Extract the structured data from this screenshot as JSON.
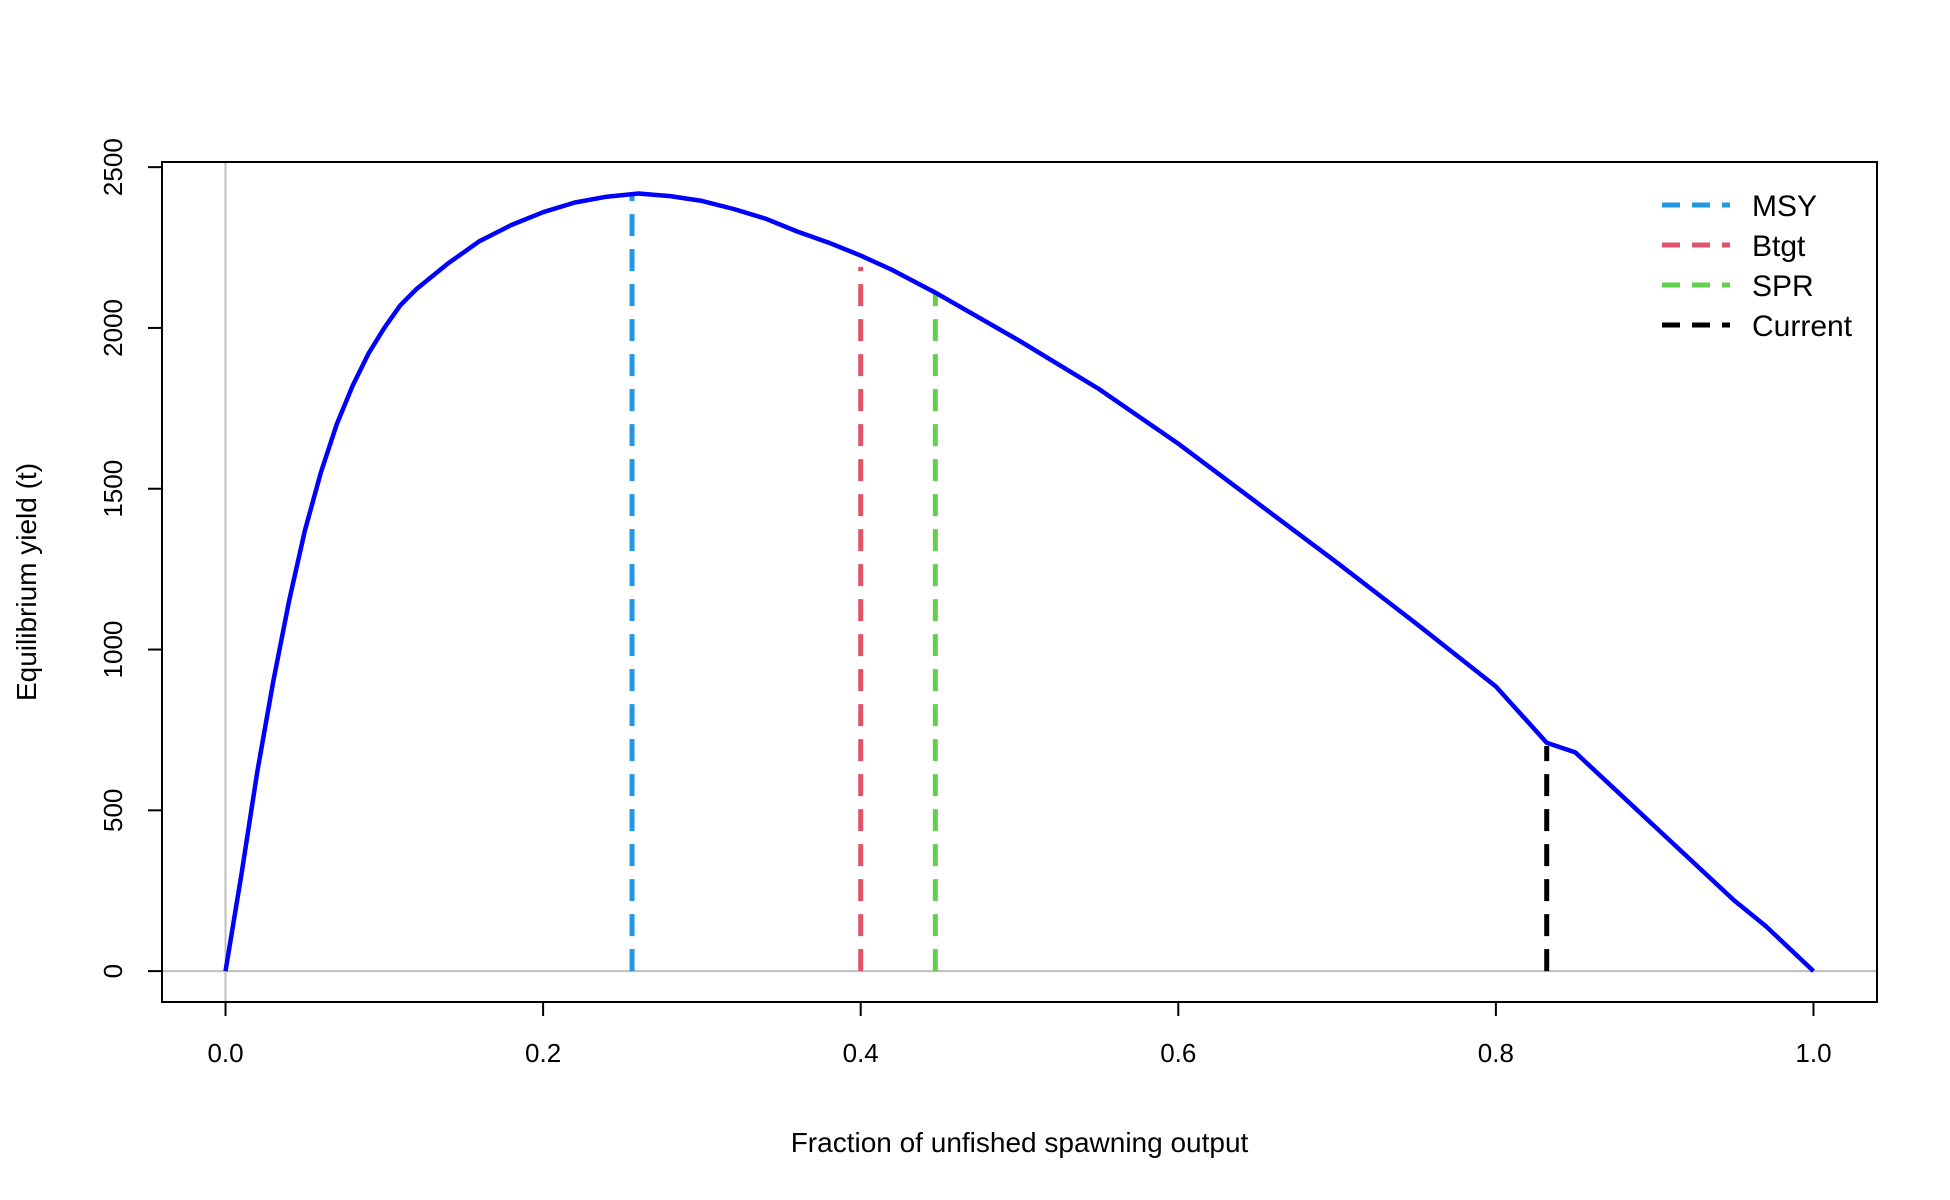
{
  "chart_data": {
    "type": "line",
    "title": "",
    "xlabel": "Fraction of unfished spawning output",
    "ylabel": "Equilibrium yield (t)",
    "xlim": [
      -0.04,
      1.04
    ],
    "ylim": [
      -96,
      2516
    ],
    "x_ticks": [
      0.0,
      0.2,
      0.4,
      0.6,
      0.8,
      1.0
    ],
    "x_tick_labels": [
      "0.0",
      "0.2",
      "0.4",
      "0.6",
      "0.8",
      "1.0"
    ],
    "y_ticks": [
      0,
      500,
      1000,
      1500,
      2000,
      2500
    ],
    "y_tick_labels": [
      "0",
      "500",
      "1000",
      "1500",
      "2000",
      "2500"
    ],
    "grid": false,
    "reference_lines": [
      {
        "axis": "x",
        "value": 0,
        "color": "#bebebe"
      },
      {
        "axis": "y",
        "value": 0,
        "color": "#bebebe"
      }
    ],
    "series": [
      {
        "color": "#0000ff",
        "x": [
          0,
          0.01,
          0.02,
          0.03,
          0.04,
          0.05,
          0.06,
          0.07,
          0.08,
          0.09,
          0.1,
          0.11,
          0.12,
          0.14,
          0.16,
          0.18,
          0.2,
          0.22,
          0.24,
          0.26,
          0.28,
          0.3,
          0.32,
          0.34,
          0.36,
          0.38,
          0.4,
          0.42,
          0.447,
          0.5,
          0.55,
          0.6,
          0.65,
          0.7,
          0.75,
          0.8,
          0.832,
          0.85,
          0.9,
          0.95,
          0.97,
          1.0
        ],
        "y": [
          0,
          300,
          620,
          900,
          1150,
          1370,
          1550,
          1700,
          1820,
          1920,
          2000,
          2070,
          2120,
          2200,
          2270,
          2320,
          2360,
          2390,
          2408,
          2418,
          2410,
          2395,
          2370,
          2340,
          2300,
          2265,
          2225,
          2180,
          2110,
          1960,
          1810,
          1640,
          1455,
          1270,
          1080,
          885,
          710,
          680,
          450,
          220,
          140,
          0
        ]
      }
    ],
    "legend": {
      "placement": "top-right",
      "entries": [
        {
          "label": "MSY",
          "color": "#2297e6"
        },
        {
          "label": "Btgt",
          "color": "#df536b"
        },
        {
          "label": "SPR",
          "color": "#61d04f"
        },
        {
          "label": "Current",
          "color": "#000000"
        }
      ]
    },
    "markers": [
      {
        "name": "MSY",
        "x": 0.256,
        "y": 2418,
        "color": "#2297e6"
      },
      {
        "name": "Btgt",
        "x": 0.4,
        "y": 2190,
        "color": "#df536b"
      },
      {
        "name": "SPR",
        "x": 0.447,
        "y": 2110,
        "color": "#61d04f"
      },
      {
        "name": "Current",
        "x": 0.832,
        "y": 700,
        "color": "#000000"
      }
    ]
  }
}
